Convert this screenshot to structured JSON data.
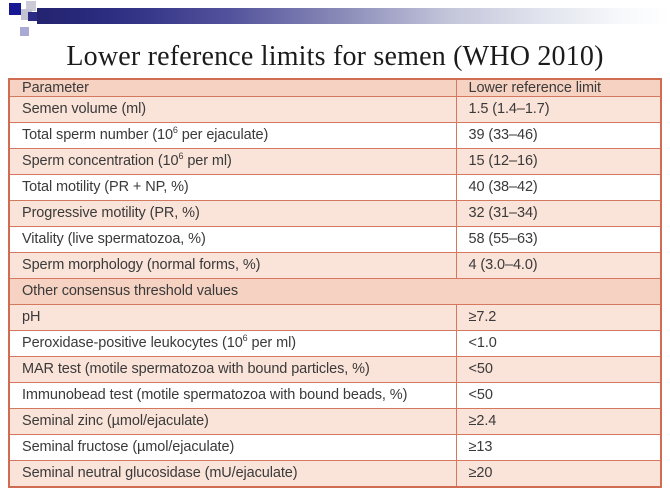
{
  "title": "Lower reference limits for semen (WHO 2010)",
  "colors": {
    "bar_navy": "#232370",
    "square_navy": "#181894",
    "square_gray": "#c2c2d0",
    "square_lavender": "#a9a9d4",
    "table_border": "#d4785f",
    "header_row_pink": "#f6d2c2",
    "data_row_pink": "#fae3d8",
    "text": "#3a3a3a"
  },
  "table": {
    "header": [
      "Parameter",
      "Lower reference limit"
    ],
    "rows": [
      {
        "shade": "pink",
        "param": [
          {
            "t": "Semen volume (ml)"
          }
        ],
        "value": "1.5 (1.4–1.7)"
      },
      {
        "shade": "white",
        "param": [
          {
            "t": "Total sperm number (10"
          },
          {
            "sup": "6"
          },
          {
            "t": " per ejaculate)"
          }
        ],
        "value": "39 (33–46)"
      },
      {
        "shade": "pink",
        "param": [
          {
            "t": "Sperm concentration (10"
          },
          {
            "sup": "6"
          },
          {
            "t": " per ml)"
          }
        ],
        "value": "15 (12–16)"
      },
      {
        "shade": "white",
        "param": [
          {
            "t": "Total motility (PR + NP, %)"
          }
        ],
        "value": "40 (38–42)"
      },
      {
        "shade": "pink",
        "param": [
          {
            "t": "Progressive motility (PR, %)"
          }
        ],
        "value": "32 (31–34)"
      },
      {
        "shade": "white",
        "param": [
          {
            "t": "Vitality (live spermatozoa, %)"
          }
        ],
        "value": "58 (55–63)"
      },
      {
        "shade": "pink",
        "param": [
          {
            "t": "Sperm morphology (normal forms, %)"
          }
        ],
        "value": "4 (3.0–4.0)"
      },
      {
        "section": true,
        "shade": "header",
        "param": [
          {
            "t": "Other consensus threshold values"
          }
        ]
      },
      {
        "shade": "pink",
        "param": [
          {
            "t": "pH"
          }
        ],
        "value": "≥7.2"
      },
      {
        "shade": "white",
        "param": [
          {
            "t": "Peroxidase-positive leukocytes (10"
          },
          {
            "sup": "6"
          },
          {
            "t": " per ml)"
          }
        ],
        "value": "<1.0"
      },
      {
        "shade": "pink",
        "param": [
          {
            "t": "MAR test (motile spermatozoa with bound particles, %)"
          }
        ],
        "value": "<50"
      },
      {
        "shade": "white",
        "param": [
          {
            "t": "Immunobead test (motile spermatozoa with bound beads, %)"
          }
        ],
        "value": "<50"
      },
      {
        "shade": "pink",
        "param": [
          {
            "t": "Seminal zinc (µmol/ejaculate)"
          }
        ],
        "value": "≥2.4"
      },
      {
        "shade": "white",
        "param": [
          {
            "t": "Seminal fructose (µmol/ejaculate)"
          }
        ],
        "value": "≥13"
      },
      {
        "shade": "pink",
        "param": [
          {
            "t": "Seminal neutral glucosidase (mU/ejaculate)"
          }
        ],
        "value": "≥20"
      }
    ]
  }
}
